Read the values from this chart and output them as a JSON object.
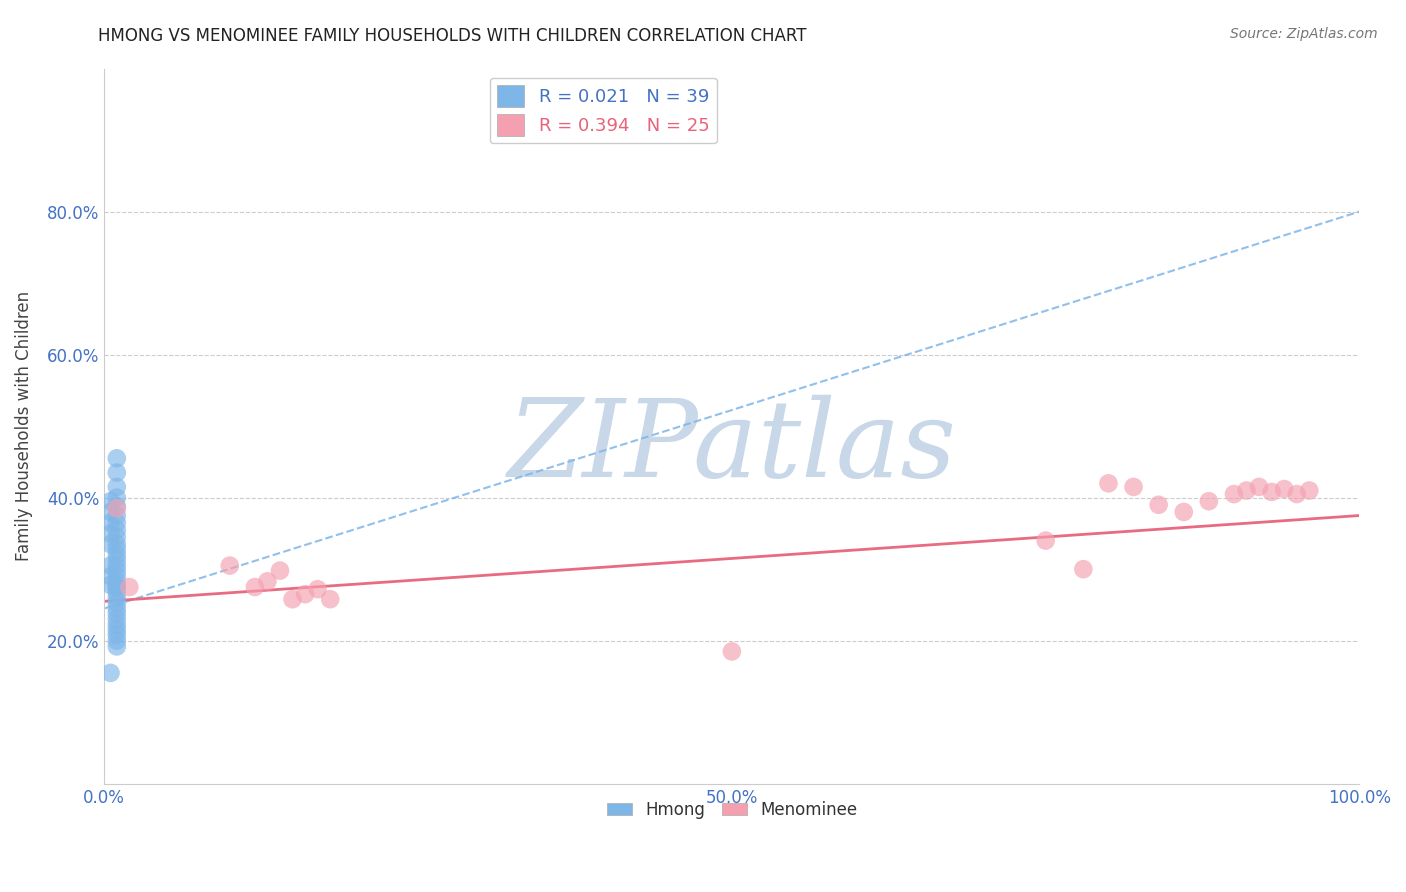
{
  "title": "HMONG VS MENOMINEE FAMILY HOUSEHOLDS WITH CHILDREN CORRELATION CHART",
  "source": "Source: ZipAtlas.com",
  "ylabel": "Family Households with Children",
  "xlim": [
    0,
    1.0
  ],
  "ylim": [
    0,
    1.0
  ],
  "hmong_R": 0.021,
  "hmong_N": 39,
  "menominee_R": 0.394,
  "menominee_N": 25,
  "hmong_color": "#7EB6E8",
  "menominee_color": "#F4A0B0",
  "hmong_line_color": "#7EB6E8",
  "menominee_line_color": "#E8637A",
  "watermark": "ZIPatlas",
  "watermark_color": "#C8D8E8",
  "hmong_line_x0": 0.0,
  "hmong_line_y0": 0.245,
  "hmong_line_x1": 1.0,
  "hmong_line_y1": 0.8,
  "menominee_line_x0": 0.0,
  "menominee_line_y0": 0.255,
  "menominee_line_x1": 1.0,
  "menominee_line_y1": 0.375,
  "hmong_x": [
    0.01,
    0.01,
    0.01,
    0.01,
    0.01,
    0.01,
    0.01,
    0.01,
    0.01,
    0.01,
    0.01,
    0.01,
    0.01,
    0.01,
    0.01,
    0.01,
    0.01,
    0.01,
    0.01,
    0.01,
    0.01,
    0.01,
    0.01,
    0.01,
    0.01,
    0.01,
    0.01,
    0.01,
    0.01,
    0.01,
    0.005,
    0.005,
    0.005,
    0.005,
    0.005,
    0.005,
    0.005,
    0.005,
    0.005
  ],
  "hmong_y": [
    0.455,
    0.435,
    0.415,
    0.4,
    0.388,
    0.375,
    0.365,
    0.355,
    0.345,
    0.335,
    0.328,
    0.32,
    0.313,
    0.305,
    0.298,
    0.29,
    0.282,
    0.275,
    0.268,
    0.26,
    0.253,
    0.245,
    0.238,
    0.23,
    0.222,
    0.215,
    0.208,
    0.2,
    0.192,
    0.275,
    0.395,
    0.38,
    0.365,
    0.35,
    0.335,
    0.305,
    0.29,
    0.278,
    0.155
  ],
  "menominee_x": [
    0.01,
    0.02,
    0.1,
    0.12,
    0.13,
    0.14,
    0.15,
    0.16,
    0.17,
    0.18,
    0.5,
    0.75,
    0.78,
    0.8,
    0.82,
    0.84,
    0.86,
    0.88,
    0.9,
    0.91,
    0.92,
    0.93,
    0.94,
    0.95,
    0.96
  ],
  "menominee_y": [
    0.385,
    0.275,
    0.305,
    0.275,
    0.283,
    0.298,
    0.258,
    0.265,
    0.272,
    0.258,
    0.185,
    0.34,
    0.3,
    0.42,
    0.415,
    0.39,
    0.38,
    0.395,
    0.405,
    0.41,
    0.415,
    0.408,
    0.412,
    0.405,
    0.41
  ]
}
